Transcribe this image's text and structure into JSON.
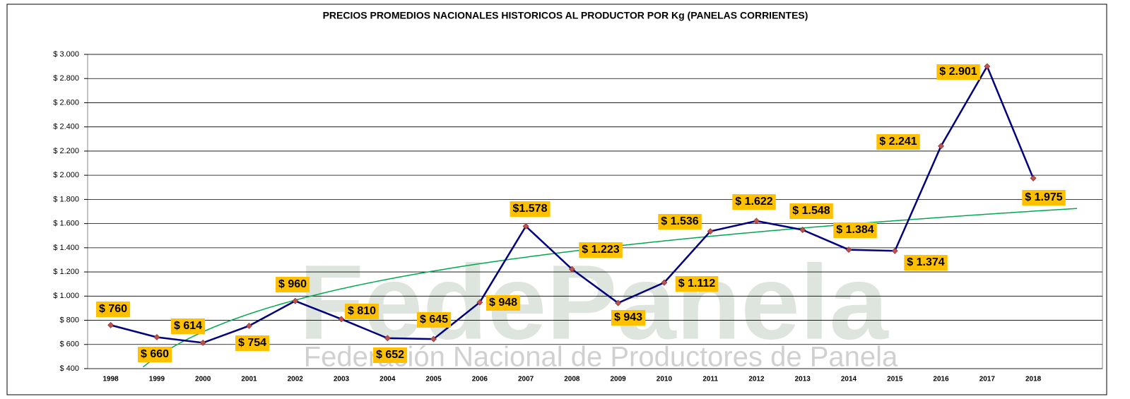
{
  "chart_data": {
    "type": "line",
    "title": "PRECIOS PROMEDIOS NACIONALES HISTORICOS AL PRODUCTOR POR Kg (PANELAS CORRIENTES)",
    "watermark": "FedePanela",
    "watermark_subtitle": "Federación Nacional de Productores de Panela",
    "categories": [
      "1998",
      "1999",
      "2000",
      "2001",
      "2002",
      "2003",
      "2004",
      "2005",
      "2006",
      "2007",
      "2008",
      "2009",
      "2010",
      "2011",
      "2012",
      "2013",
      "2014",
      "2015",
      "2016",
      "2017",
      "2018"
    ],
    "values": [
      760,
      660,
      614,
      754,
      960,
      810,
      652,
      645,
      948,
      1578,
      1223,
      943,
      1112,
      1536,
      1622,
      1548,
      1384,
      1374,
      2241,
      2901,
      1975
    ],
    "value_labels": [
      "$ 760",
      "$ 660",
      "$ 614",
      "$ 754",
      "$ 960",
      "$ 810",
      "$ 652",
      "$ 645",
      "$ 948",
      "$1.578",
      "$ 1.223",
      "$ 943",
      "$ 1.112",
      "$ 1.536",
      "$ 1.622",
      "$ 1.548",
      "$ 1.384",
      "$ 1.374",
      "$ 2.241",
      "$ 2.901",
      "$ 1.975"
    ],
    "color": "#000080",
    "marker_color": "#c0504d",
    "label_background": "#ffc000",
    "trendline": "logarithmic",
    "trendline_color": "#00a84f",
    "grid": true,
    "ylim": [
      400,
      3000
    ],
    "yticks": [
      {
        "value": 400,
        "label": "$ 400"
      },
      {
        "value": 600,
        "label": "$ 600"
      },
      {
        "value": 800,
        "label": "$ 800"
      },
      {
        "value": 1000,
        "label": "$ 1.000"
      },
      {
        "value": 1200,
        "label": "$ 1.200"
      },
      {
        "value": 1400,
        "label": "$ 1.400"
      },
      {
        "value": 1600,
        "label": "$ 1.600"
      },
      {
        "value": 1800,
        "label": "$ 1.800"
      },
      {
        "value": 2000,
        "label": "$ 2.000"
      },
      {
        "value": 2200,
        "label": "$ 2.200"
      },
      {
        "value": 2400,
        "label": "$ 2.400"
      },
      {
        "value": 2600,
        "label": "$ 2.600"
      },
      {
        "value": 2800,
        "label": "$ 2.800"
      },
      {
        "value": 3000,
        "label": "$ 3.000"
      }
    ]
  }
}
